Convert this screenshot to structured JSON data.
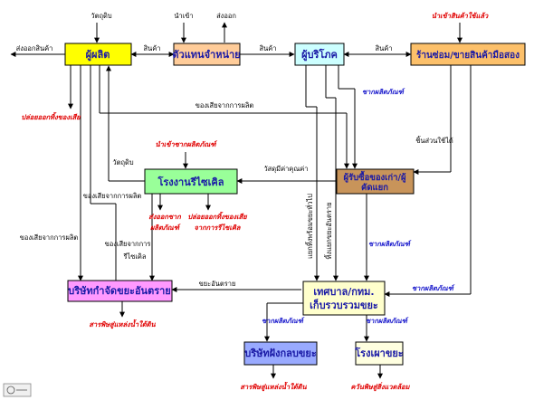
{
  "colors": {
    "producer": "#ffff00",
    "distributor": "#ffcc99",
    "consumer": "#ccffff",
    "secondhand": "#fcc06a",
    "recycle_factory": "#99ff99",
    "scrap_buyer": "#c8945a",
    "hazard_company": "#ff99ff",
    "municipality": "#ffffcc",
    "landfill_company": "#99aaff",
    "incinerator": "#ffffe0",
    "label_red": "#e00000",
    "label_blue": "#1a1acc"
  },
  "boxes": {
    "producer": "ผู้ผลิต",
    "distributor": "ตัวแทนจำหน่าย",
    "consumer": "ผู้บริโภค",
    "secondhand": "ร้านซ่อม/ขายสินค้ามือสอง",
    "recycle_factory": "โรงงานรีไซเคิล",
    "scrap_buyer_1": "ผู้รับซื้อของเก่า/ผู้",
    "scrap_buyer_2": "คัดแยก",
    "hazard_company": "บริษัทกำจัดขยะอันตราย",
    "municipality_1": "เทศบาล/กทม.",
    "municipality_2": "เก็บรวบรวมขยะ",
    "landfill_company": "บริษัทฝังกลบขยะ",
    "incinerator": "โรงเผาขยะ"
  },
  "labels": {
    "raw_material_top": "วัตถุดิบ",
    "import": "นำเข้า",
    "export": "ส่งออก",
    "import_used": "นำเข้าสินค้าใช้แล้ว",
    "export_goods": "ส่งออกสินค้า",
    "goods_1": "สินค้า",
    "goods_2": "สินค้า",
    "goods_3": "สินค้า",
    "emissions_producer": "ปล่อยออกทิ้งของเสีย",
    "production_waste_1": "ของเสียจากการผลิต",
    "e_waste_1": "ซากผลิตภัณฑ์",
    "spare_parts": "ชิ้นส่วนใช้ได้",
    "import_e_waste": "นำเข้าซากผลิตภัณฑ์",
    "raw_material_mid": "วัตถุดิบ",
    "valuable_material": "วัสดุมีค่าคุณค่า",
    "production_waste_2": "ของเสียจากการผลิต",
    "export_e_waste_1": "ส่งออกซาก",
    "export_e_waste_2": "ผลิตภัณฑ์",
    "emissions_recycle_1": "ปล่อยออกทิ้งของเสีย",
    "emissions_recycle_2": "จากการรีไซเคิล",
    "production_waste_3": "ของเสียจากการผลิต",
    "recycle_waste_1": "ของเสียจากการ",
    "recycle_waste_2": "รีไซเคิล",
    "vertical_1": "แยกทิ้งพร้อมขยะทั่วไป",
    "vertical_2": "ทิ้งแยกขยะอันตราย",
    "e_waste_2": "ซากผลิตภัณฑ์",
    "hazardous_waste": "ขยะอันตราย",
    "e_waste_3": "ซากผลิตภัณฑ์",
    "hazard_output": "สารพิษสู่แหล่งน้ำใต้ดิน",
    "e_waste_4": "ซากผลิตภัณฑ์",
    "e_waste_5": "ซากผลิตภัณฑ์",
    "landfill_output": "สารพิษสู่แหล่งน้ำใต้ดิน",
    "incinerator_output": "ควันพิษสู่สิ่งแวดล้อม"
  }
}
